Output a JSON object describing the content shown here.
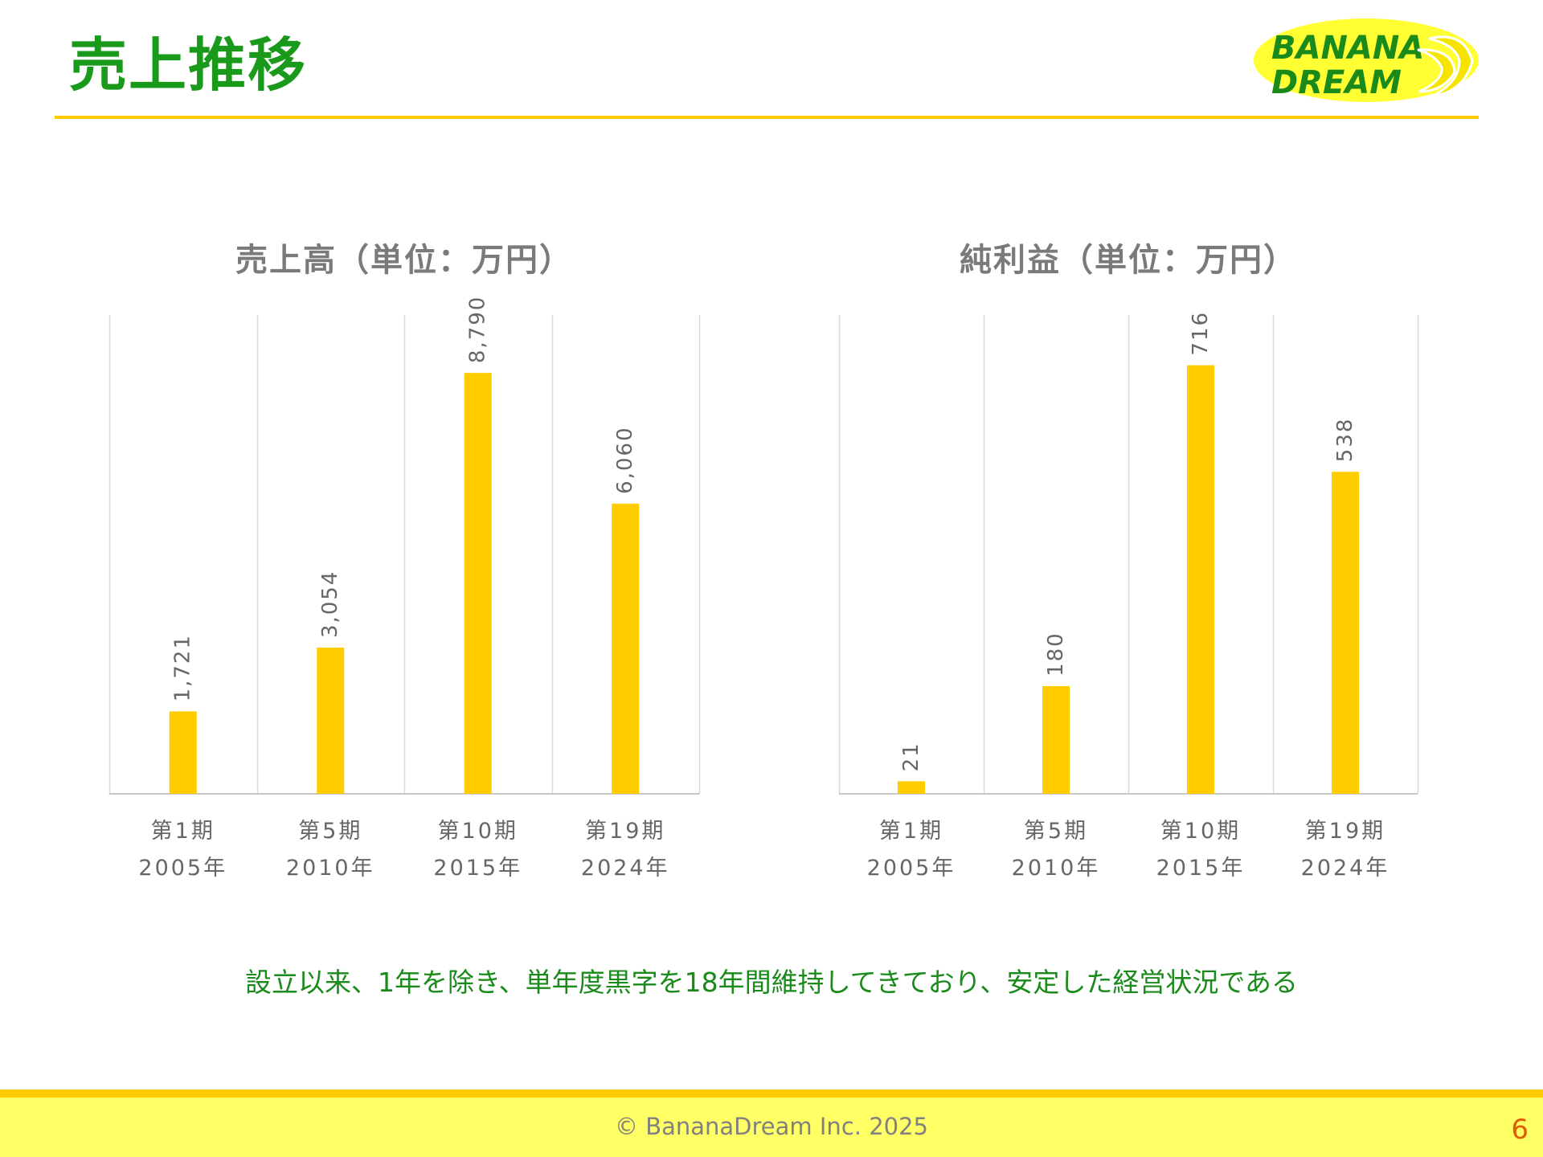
{
  "header": {
    "title": "売上推移",
    "logo_text_line1": "BANANA",
    "logo_text_line2": "DREAM"
  },
  "colors": {
    "accent": "#ffcc00",
    "title_green": "#1a9a1a",
    "summary_green": "#1a8a1a",
    "page_number": "#e05a00",
    "footer_bg": "#ffff66"
  },
  "chart_data": [
    {
      "type": "bar",
      "title": "売上高（単位：万円）",
      "categories": [
        {
          "period": "第1期",
          "year": "2005年"
        },
        {
          "period": "第5期",
          "year": "2010年"
        },
        {
          "period": "第10期",
          "year": "2015年"
        },
        {
          "period": "第19期",
          "year": "2024年"
        }
      ],
      "values": [
        1721,
        3054,
        8790,
        6060
      ],
      "value_labels": [
        "1,721",
        "3,054",
        "8,790",
        "6,060"
      ],
      "ylim": [
        0,
        10000
      ],
      "grid": "vertical"
    },
    {
      "type": "bar",
      "title": "純利益（単位：万円）",
      "categories": [
        {
          "period": "第1期",
          "year": "2005年"
        },
        {
          "period": "第5期",
          "year": "2010年"
        },
        {
          "period": "第10期",
          "year": "2015年"
        },
        {
          "period": "第19期",
          "year": "2024年"
        }
      ],
      "values": [
        21,
        180,
        716,
        538
      ],
      "value_labels": [
        "21",
        "180",
        "716",
        "538"
      ],
      "ylim": [
        0,
        800
      ],
      "grid": "vertical"
    }
  ],
  "summary": "設立以来、1年を除き、単年度黒字を18年間維持してきており、安定した経営状況である",
  "footer": {
    "copyright": "© BananaDream Inc. 2025",
    "page_number": "6"
  }
}
